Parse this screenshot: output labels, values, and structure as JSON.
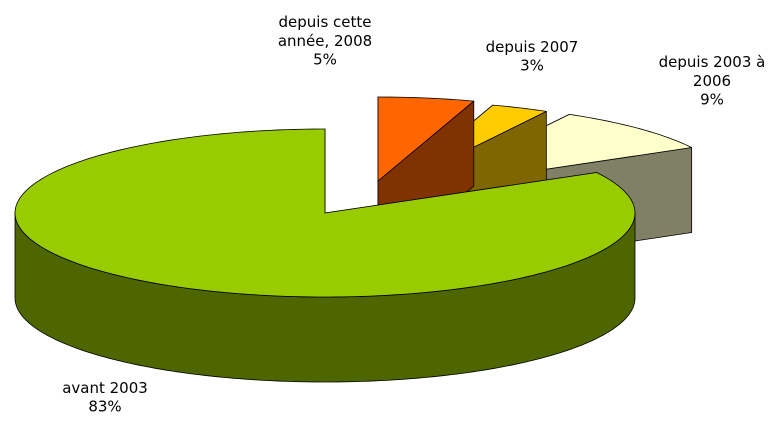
{
  "chart_data": {
    "type": "pie3d",
    "categories": [
      "depuis cette année, 2008",
      "depuis 2007",
      "depuis 2003 à 2006",
      "avant 2003"
    ],
    "values": [
      5,
      3,
      9,
      83
    ],
    "value_labels": [
      "5%",
      "3%",
      "9%",
      "83%"
    ],
    "colors": [
      "#ff6600",
      "#ffcc00",
      "#ffffcc",
      "#99cc00"
    ]
  }
}
